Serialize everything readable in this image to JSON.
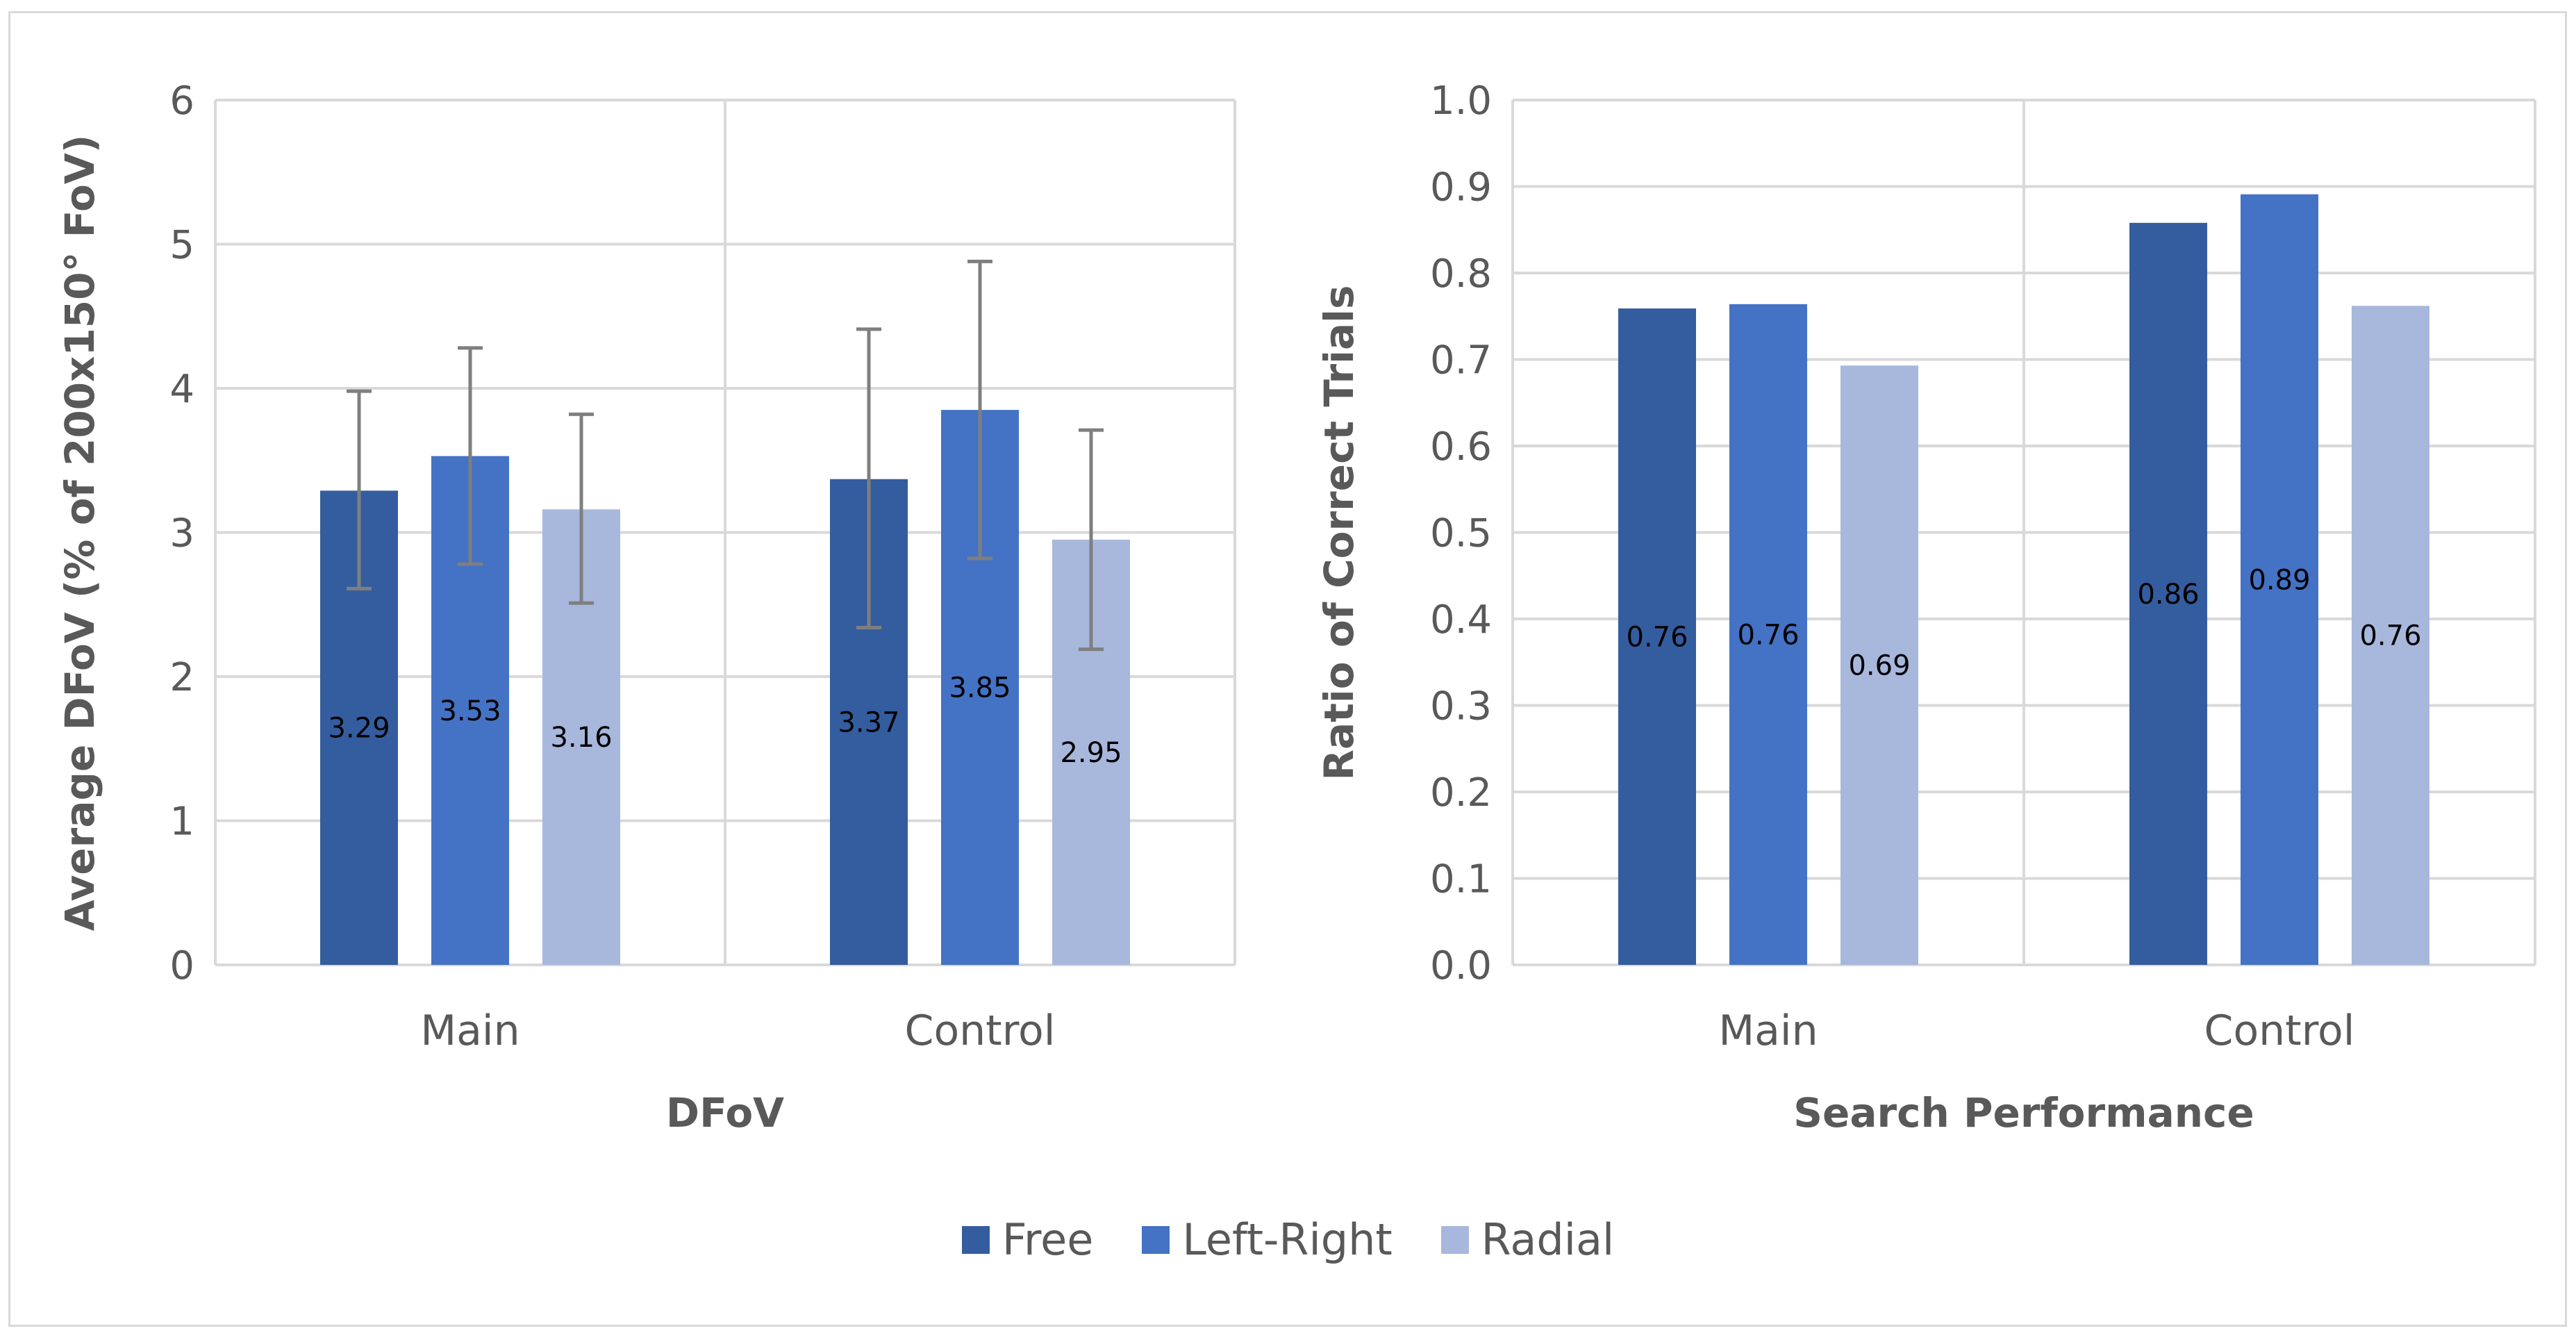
{
  "chart_data": [
    {
      "type": "bar",
      "title": "",
      "xlabel": "DFoV",
      "ylabel": "Average DFoV (% of 200x150° FoV)",
      "ylim": [
        0,
        6
      ],
      "yticks": [
        "0",
        "1",
        "2",
        "3",
        "4",
        "5",
        "6"
      ],
      "categories": [
        "Main",
        "Control"
      ],
      "grid": true,
      "error_bars": true,
      "series": [
        {
          "name": "Free",
          "values": [
            3.29,
            3.37
          ],
          "labels": [
            "3.29",
            "3.37"
          ],
          "error_low": [
            2.61,
            2.34
          ],
          "error_high": [
            3.98,
            4.41
          ]
        },
        {
          "name": "Left-Right",
          "values": [
            3.53,
            3.85
          ],
          "labels": [
            "3.53",
            "3.85"
          ],
          "error_low": [
            2.78,
            2.82
          ],
          "error_high": [
            4.28,
            4.88
          ]
        },
        {
          "name": "Radial",
          "values": [
            3.16,
            2.95
          ],
          "labels": [
            "3.16",
            "2.95"
          ],
          "error_low": [
            2.51,
            2.19
          ],
          "error_high": [
            3.82,
            3.71
          ]
        }
      ]
    },
    {
      "type": "bar",
      "title": "",
      "xlabel": "Search Performance",
      "ylabel": "Ratio of Correct Trials",
      "ylim": [
        0,
        1
      ],
      "yticks": [
        "0.0",
        "0.1",
        "0.2",
        "0.3",
        "0.4",
        "0.5",
        "0.6",
        "0.7",
        "0.8",
        "0.9",
        "1.0"
      ],
      "categories": [
        "Main",
        "Control"
      ],
      "grid": true,
      "error_bars": false,
      "series": [
        {
          "name": "Free",
          "values": [
            0.759,
            0.858
          ],
          "labels": [
            "0.76",
            "0.86"
          ]
        },
        {
          "name": "Left-Right",
          "values": [
            0.764,
            0.891
          ],
          "labels": [
            "0.76",
            "0.89"
          ]
        },
        {
          "name": "Radial",
          "values": [
            0.693,
            0.762
          ],
          "labels": [
            "0.69",
            "0.76"
          ]
        }
      ]
    }
  ],
  "legend": {
    "position": "bottom",
    "items": [
      {
        "name": "Free",
        "color": "#345d9f"
      },
      {
        "name": "Left-Right",
        "color": "#4472c4"
      },
      {
        "name": "Radial",
        "color": "#a8b7dc"
      }
    ]
  }
}
